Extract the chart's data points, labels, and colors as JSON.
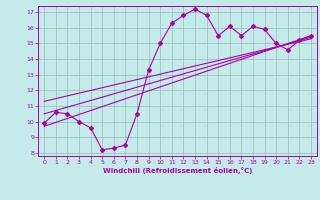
{
  "xlabel": "Windchill (Refroidissement éolien,°C)",
  "x_ticks": [
    0,
    1,
    2,
    3,
    4,
    5,
    6,
    7,
    8,
    9,
    10,
    11,
    12,
    13,
    14,
    15,
    16,
    17,
    18,
    19,
    20,
    21,
    22,
    23
  ],
  "ylim": [
    7.8,
    17.4
  ],
  "xlim": [
    -0.5,
    23.5
  ],
  "y_ticks": [
    8,
    9,
    10,
    11,
    12,
    13,
    14,
    15,
    16,
    17
  ],
  "bg_color": "#c4eaea",
  "line_color": "#aa00aa",
  "grid_color": "#9bbaba",
  "curve1_x": [
    0,
    1,
    2,
    3,
    4,
    5,
    6,
    7,
    8,
    9,
    10,
    11,
    12,
    13,
    14,
    15,
    16,
    17,
    18,
    19,
    20,
    21,
    22,
    23
  ],
  "curve1_y": [
    9.9,
    10.6,
    10.5,
    10.0,
    9.6,
    8.2,
    8.3,
    8.5,
    10.5,
    13.3,
    15.0,
    16.3,
    16.8,
    17.2,
    16.8,
    15.5,
    16.1,
    15.5,
    16.1,
    15.9,
    15.0,
    14.6,
    15.2,
    15.5
  ],
  "line2_x": [
    0,
    23
  ],
  "line2_y": [
    9.7,
    15.5
  ],
  "line3_x": [
    0,
    23
  ],
  "line3_y": [
    10.5,
    15.4
  ],
  "line4_x": [
    0,
    23
  ],
  "line4_y": [
    11.3,
    15.3
  ]
}
